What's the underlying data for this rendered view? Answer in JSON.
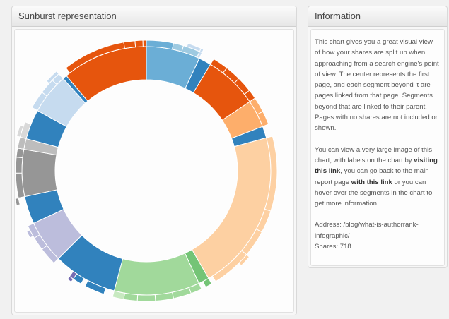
{
  "left_panel": {
    "title": "Sunburst representation"
  },
  "right_panel": {
    "title": "Information",
    "para1": "This chart gives you a great visual view of how your shares are split up when approaching from a search engine's point of view. The center represents the first page, and each segment beyond it are pages linked from that page. Segments beyond that are linked to their parent. Pages with no shares are not included or shown.",
    "para2_a": "You can view a very large image of this chart, with labels on the chart by",
    "link1": "visiting this link",
    "para2_b": ", you can go back to the main report page",
    "link2": "with this link",
    "para2_c": "or you can hover over the segments in the chart to get more information.",
    "address": "Address: /blog/what-is-authorrank-infographic/",
    "shares": "Shares: 718"
  },
  "chart_data": {
    "type": "sunburst",
    "rings": [
      {
        "segments": [
          {
            "start": 0,
            "end": 25.2,
            "color": "#6baed6"
          },
          {
            "start": 25.2,
            "end": 31.0,
            "color": "#3182bd"
          },
          {
            "start": 31.0,
            "end": 56.2,
            "color": "#e6550d"
          },
          {
            "start": 56.2,
            "end": 69.1,
            "color": "#fdae6b"
          },
          {
            "start": 69.1,
            "end": 74.6,
            "color": "#3182bd"
          },
          {
            "start": 74.6,
            "end": 150.0,
            "color": "#fdd0a2"
          },
          {
            "start": 150.0,
            "end": 155.0,
            "color": "#74c476"
          },
          {
            "start": 155.0,
            "end": 195.0,
            "color": "#a1d99b"
          },
          {
            "start": 195.0,
            "end": 225.0,
            "color": "#3182bd"
          },
          {
            "start": 225.0,
            "end": 245.0,
            "color": "#bcbddc"
          },
          {
            "start": 245.0,
            "end": 258.0,
            "color": "#3182bd"
          },
          {
            "start": 258.0,
            "end": 280.0,
            "color": "#969696"
          },
          {
            "start": 280.0,
            "end": 285.0,
            "color": "#bdbdbd"
          },
          {
            "start": 285.0,
            "end": 299.0,
            "color": "#3182bd"
          },
          {
            "start": 299.0,
            "end": 318.0,
            "color": "#c6dbef"
          },
          {
            "start": 318.0,
            "end": 320.0,
            "color": "#3182bd"
          },
          {
            "start": 320.0,
            "end": 360.0,
            "color": "#e6550d"
          }
        ]
      },
      {
        "segments": [
          {
            "start": 0,
            "end": 12.0,
            "color": "#6baed6"
          },
          {
            "start": 12.0,
            "end": 16.5,
            "color": "#9ecae1"
          },
          {
            "start": 16.5,
            "end": 24.0,
            "color": "#9ecae1"
          },
          {
            "start": 24.0,
            "end": 25.2,
            "color": "#c6dbef"
          },
          {
            "start": 31.0,
            "end": 38.0,
            "color": "#e6550d"
          },
          {
            "start": 38.0,
            "end": 45.0,
            "color": "#e6550d"
          },
          {
            "start": 45.0,
            "end": 52.0,
            "color": "#e6550d"
          },
          {
            "start": 52.0,
            "end": 56.2,
            "color": "#e6550d"
          },
          {
            "start": 56.2,
            "end": 63.0,
            "color": "#fdae6b"
          },
          {
            "start": 63.0,
            "end": 69.1,
            "color": "#fdae6b"
          },
          {
            "start": 74.6,
            "end": 108.0,
            "color": "#fdd0a2"
          },
          {
            "start": 108.0,
            "end": 118.0,
            "color": "#fdd0a2"
          },
          {
            "start": 118.0,
            "end": 130.0,
            "color": "#fdd0a2"
          },
          {
            "start": 130.0,
            "end": 148.0,
            "color": "#fdd0a2"
          },
          {
            "start": 150.0,
            "end": 153.0,
            "color": "#74c476"
          },
          {
            "start": 155.0,
            "end": 160.0,
            "color": "#a1d99b"
          },
          {
            "start": 160.0,
            "end": 168.0,
            "color": "#a1d99b"
          },
          {
            "start": 168.0,
            "end": 176.0,
            "color": "#a1d99b"
          },
          {
            "start": 176.0,
            "end": 184.0,
            "color": "#a1d99b"
          },
          {
            "start": 184.0,
            "end": 190.0,
            "color": "#a1d99b"
          },
          {
            "start": 190.0,
            "end": 195.0,
            "color": "#c7e9c0"
          },
          {
            "start": 199.0,
            "end": 208.0,
            "color": "#3182bd"
          },
          {
            "start": 210.0,
            "end": 214.0,
            "color": "#3182bd"
          },
          {
            "start": 214.0,
            "end": 216.0,
            "color": "#756bb1"
          },
          {
            "start": 225.0,
            "end": 233.0,
            "color": "#bcbddc"
          },
          {
            "start": 233.0,
            "end": 239.0,
            "color": "#bcbddc"
          },
          {
            "start": 239.0,
            "end": 245.0,
            "color": "#bcbddc"
          },
          {
            "start": 258.0,
            "end": 269.0,
            "color": "#969696"
          },
          {
            "start": 269.0,
            "end": 276.0,
            "color": "#969696"
          },
          {
            "start": 276.0,
            "end": 280.0,
            "color": "#969696"
          },
          {
            "start": 280.0,
            "end": 285.0,
            "color": "#bdbdbd"
          },
          {
            "start": 285.0,
            "end": 292.0,
            "color": "#d9d9d9"
          },
          {
            "start": 299.0,
            "end": 307.0,
            "color": "#c6dbef"
          },
          {
            "start": 307.0,
            "end": 314.0,
            "color": "#c6dbef"
          },
          {
            "start": 314.0,
            "end": 318.0,
            "color": "#c6dbef"
          },
          {
            "start": 322.0,
            "end": 350.0,
            "color": "#e6550d"
          },
          {
            "start": 350.0,
            "end": 355.0,
            "color": "#e6550d"
          },
          {
            "start": 355.0,
            "end": 358.5,
            "color": "#e6550d"
          },
          {
            "start": 358.5,
            "end": 360.0,
            "color": "#e6550d"
          }
        ]
      },
      {
        "segments": [
          {
            "start": 18.0,
            "end": 24.0,
            "color": "#c6dbef"
          },
          {
            "start": 24.0,
            "end": 25.2,
            "color": "#c6dbef"
          },
          {
            "start": 130.0,
            "end": 135.0,
            "color": "#fdd0a2"
          },
          {
            "start": 214.0,
            "end": 216.0,
            "color": "#756bb1"
          },
          {
            "start": 240.0,
            "end": 243.0,
            "color": "#bcbddc"
          },
          {
            "start": 255.0,
            "end": 258.0,
            "color": "#969696"
          },
          {
            "start": 285.0,
            "end": 290.0,
            "color": "#d9d9d9"
          },
          {
            "start": 312.0,
            "end": 318.0,
            "color": "#c6dbef"
          }
        ]
      }
    ]
  }
}
